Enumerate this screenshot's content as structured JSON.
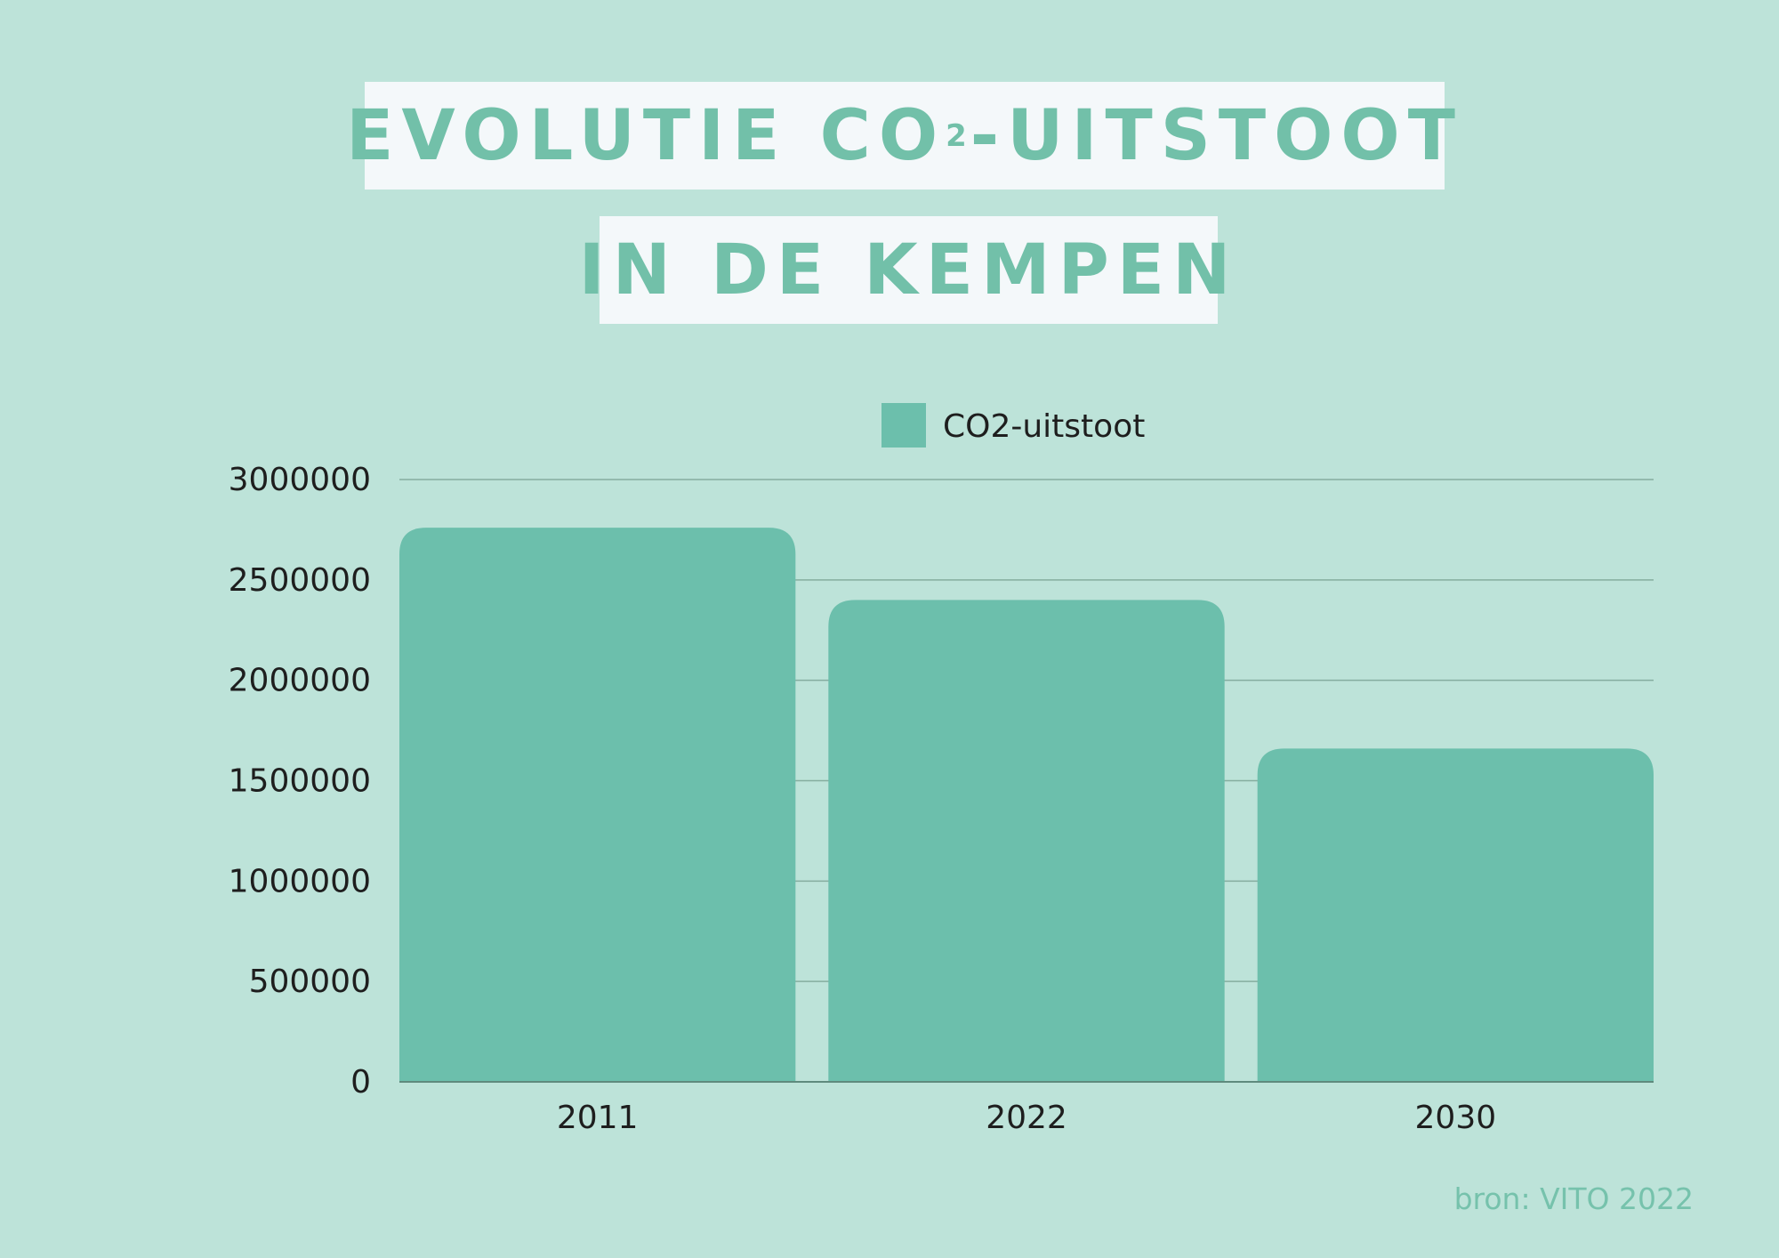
{
  "title": {
    "line1_pre": "EVOLUTIE CO",
    "line1_sub": "2",
    "line1_post": "-UITSTOOT",
    "line2": "IN DE KEMPEN"
  },
  "source": "bron: VITO 2022",
  "colors": {
    "background": "#bde3d9",
    "bar": "#6cbfac",
    "title_text": "#72c0a9",
    "title_box": "#f4f8fa",
    "grid": "#85ad9f"
  },
  "chart_data": {
    "type": "bar",
    "categories": [
      "2011",
      "2022",
      "2030"
    ],
    "series": [
      {
        "name": "CO2-uitstoot",
        "values": [
          2760000,
          2400000,
          1660000
        ]
      }
    ],
    "ylim": [
      0,
      3000000
    ],
    "yticks": [
      "0",
      "500000",
      "1000000",
      "1500000",
      "2000000",
      "2500000",
      "3000000"
    ],
    "grid": true,
    "legend_position": "top-center"
  }
}
